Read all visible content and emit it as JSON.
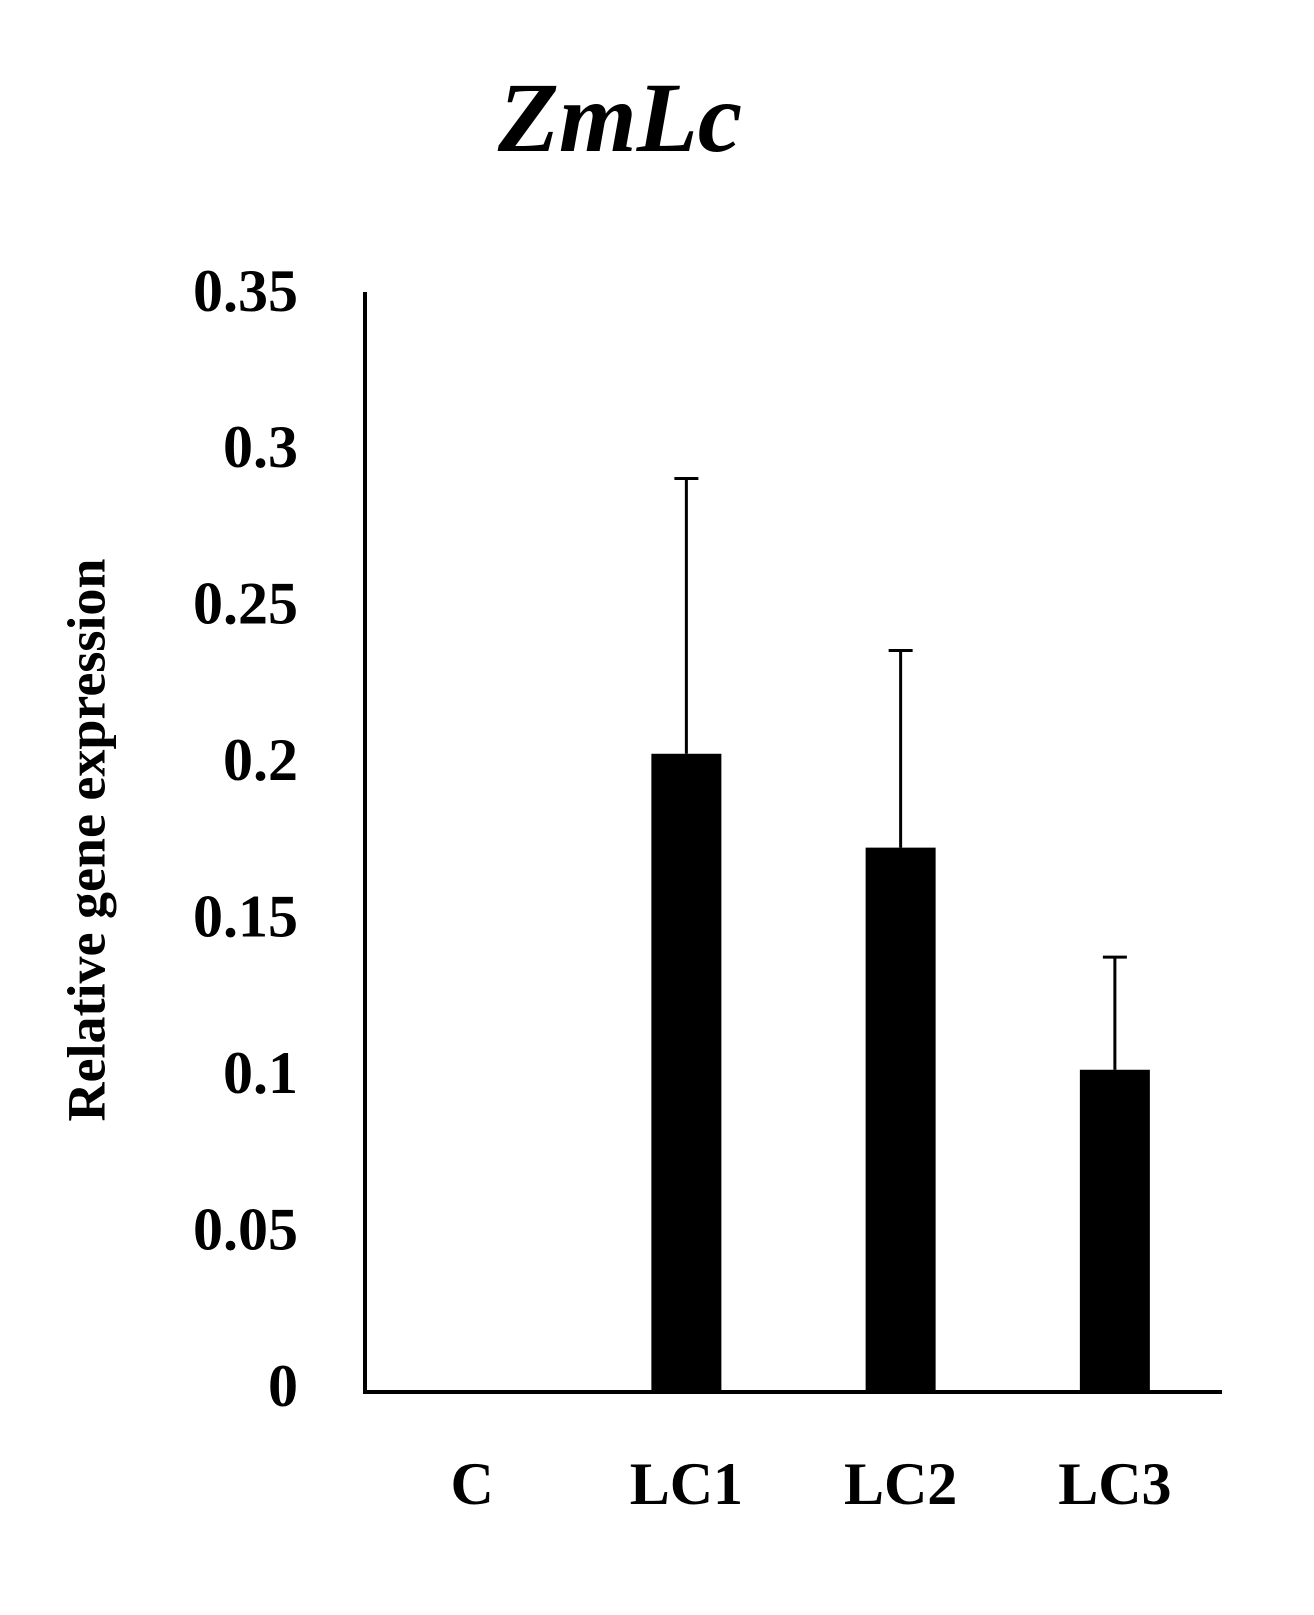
{
  "chart_data": {
    "type": "bar",
    "title": "ZmLc",
    "y_label": "Relative gene expression",
    "categories": [
      "C",
      "LC1",
      "LC2",
      "LC3"
    ],
    "values": [
      0,
      0.204,
      0.174,
      0.103
    ],
    "errors": [
      null,
      0.088,
      0.063,
      0.036
    ],
    "color": "#000000",
    "ylim": [
      0,
      0.35
    ],
    "yticks": [
      0,
      0.05,
      0.1,
      0.15,
      0.2,
      0.25,
      0.3,
      0.35
    ],
    "grid": false
  }
}
